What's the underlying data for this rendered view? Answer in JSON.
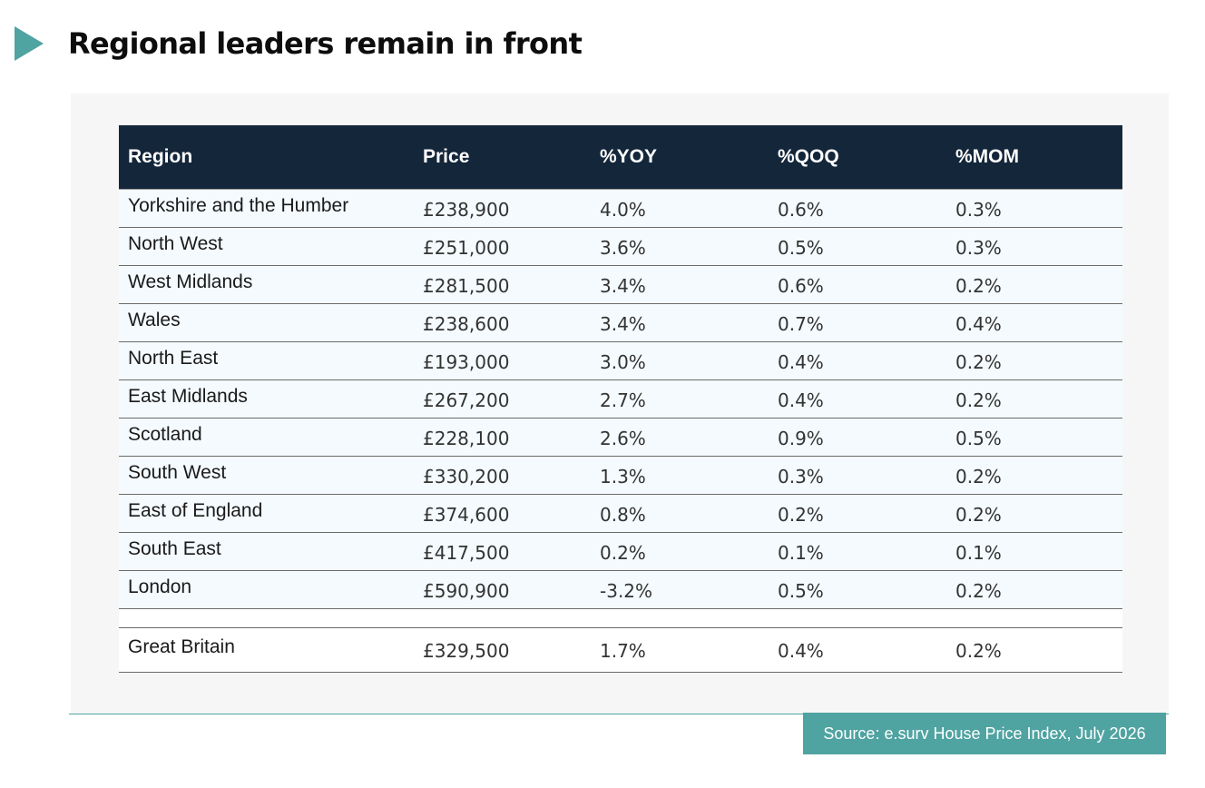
{
  "title": "Regional leaders remain in front",
  "colors": {
    "accent": "#4fa3a1",
    "header_bg": "#14263a",
    "panel_bg": "#f6f6f6"
  },
  "icons": {
    "title_marker": "play-triangle-icon"
  },
  "table": {
    "columns": [
      "Region",
      "Price",
      "%YOY",
      "%QOQ",
      "%MOM"
    ],
    "rows": [
      [
        "Yorkshire and the Humber",
        "£238,900",
        "4.0%",
        "0.6%",
        "0.3%"
      ],
      [
        "North West",
        "£251,000",
        "3.6%",
        "0.5%",
        "0.3%"
      ],
      [
        "West Midlands",
        "£281,500",
        "3.4%",
        "0.6%",
        "0.2%"
      ],
      [
        "Wales",
        "£238,600",
        "3.4%",
        "0.7%",
        "0.4%"
      ],
      [
        "North East",
        "£193,000",
        "3.0%",
        "0.4%",
        "0.2%"
      ],
      [
        "East Midlands",
        "£267,200",
        "2.7%",
        "0.4%",
        "0.2%"
      ],
      [
        "Scotland",
        "£228,100",
        "2.6%",
        "0.9%",
        "0.5%"
      ],
      [
        "South West",
        "£330,200",
        "1.3%",
        "0.3%",
        "0.2%"
      ],
      [
        "East of England",
        "£374,600",
        "0.8%",
        "0.2%",
        "0.2%"
      ],
      [
        "South East",
        "£417,500",
        "0.2%",
        "0.1%",
        "0.1%"
      ],
      [
        "London",
        "£590,900",
        "-3.2%",
        "0.5%",
        "0.2%"
      ]
    ],
    "total": [
      "Great Britain",
      "£329,500",
      "1.7%",
      "0.4%",
      "0.2%"
    ]
  },
  "source": "Source: e.surv House Price Index, July 2026"
}
